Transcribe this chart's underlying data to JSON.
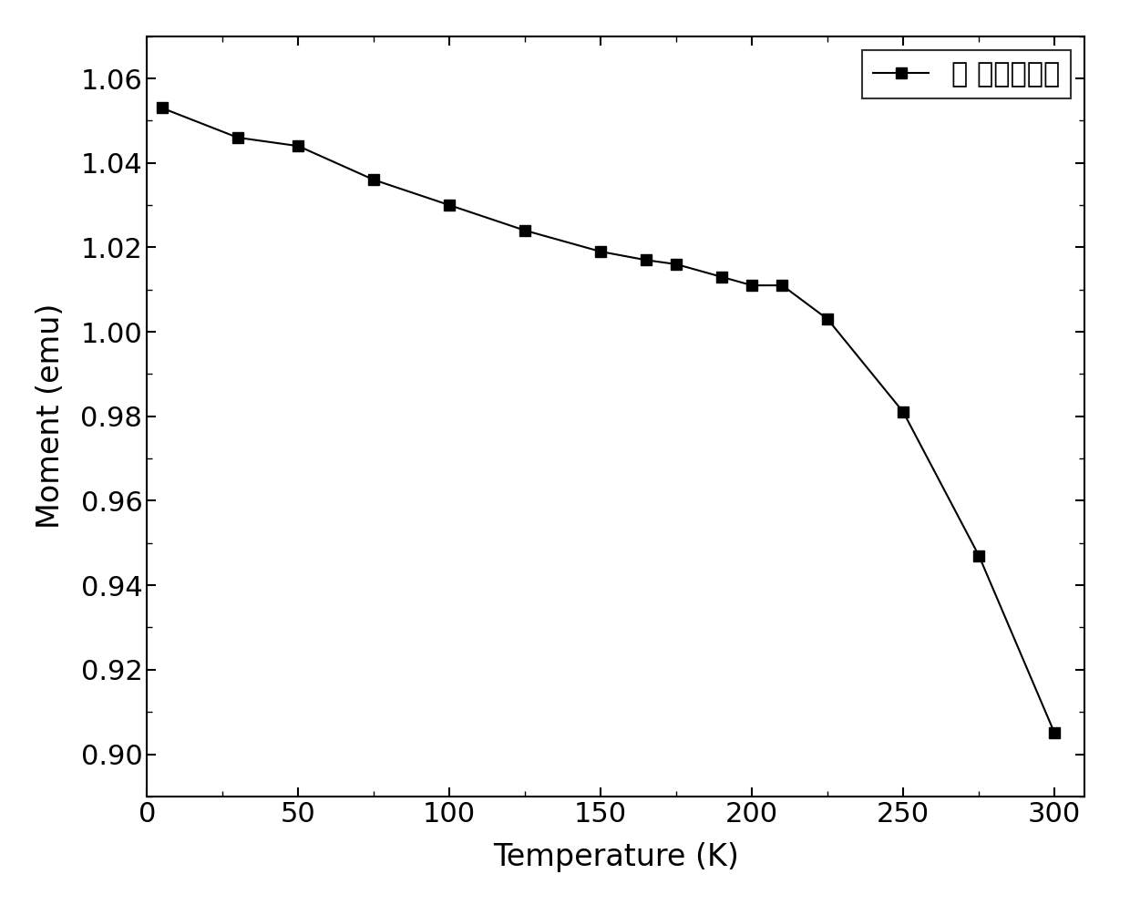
{
  "x": [
    5,
    30,
    50,
    75,
    100,
    125,
    150,
    165,
    175,
    190,
    200,
    210,
    225,
    250,
    275,
    300
  ],
  "y": [
    1.053,
    1.046,
    1.044,
    1.036,
    1.03,
    1.024,
    1.019,
    1.017,
    1.016,
    1.013,
    1.011,
    1.011,
    1.003,
    0.981,
    0.947,
    0.905
  ],
  "xlabel": "Temperature (K)",
  "ylabel": "Moment (emu)",
  "legend_label": "饱 和磁化强度",
  "xlim": [
    0,
    310
  ],
  "ylim": [
    0.89,
    1.07
  ],
  "xticks": [
    0,
    50,
    100,
    150,
    200,
    250,
    300
  ],
  "yticks": [
    0.9,
    0.92,
    0.94,
    0.96,
    0.98,
    1.0,
    1.02,
    1.04,
    1.06
  ],
  "line_color": "#000000",
  "marker": "s",
  "marker_size": 9,
  "linewidth": 1.5,
  "background_color": "#ffffff",
  "tick_fontsize": 22,
  "label_fontsize": 24,
  "legend_fontsize": 22
}
